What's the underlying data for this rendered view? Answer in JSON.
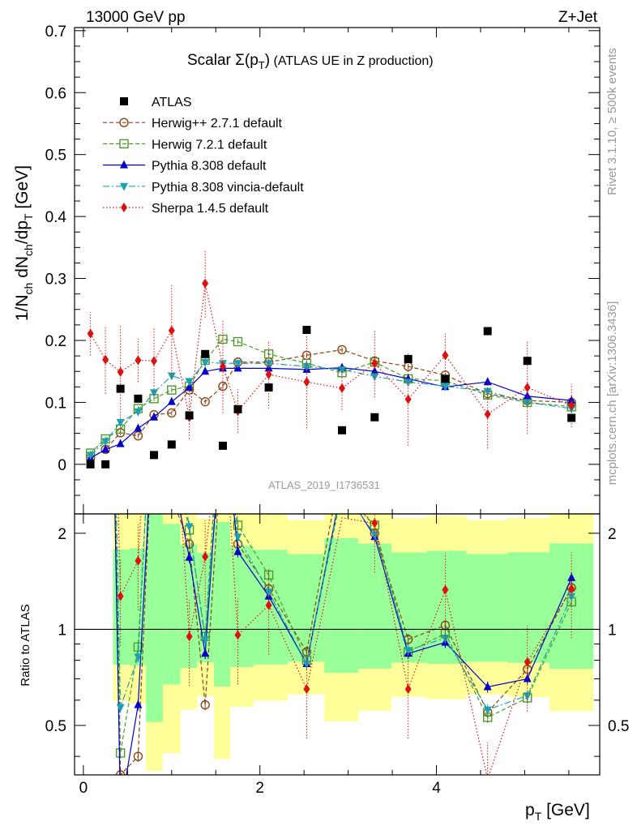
{
  "header": {
    "left": "13000 GeV pp",
    "right": "Z+Jet"
  },
  "side_text": {
    "rivet": "Rivet 3.1.10, ≥ 500k events",
    "mcplots": "mcplots.cern.ch [arXiv:1306.3436]"
  },
  "chart_data": {
    "type": "scatter",
    "title_main": "Scalar Σ(p",
    "title_sub": "T",
    "title_close": ")",
    "title_rest": " (ATLAS UE in Z production)",
    "watermark": "ATLAS_2019_I1736531",
    "ylabel": "1/N_ch dN_ch/dp_T [GeV]",
    "xlabel": "p_T [GeV]",
    "xlim": [
      -0.1,
      5.85
    ],
    "ylim": [
      -0.08,
      0.705
    ],
    "ratio_ylabel": "Ratio to ATLAS",
    "ratio_ylim": [
      0.35,
      2.3
    ],
    "x_ticks": [
      "0",
      "2",
      "4"
    ],
    "y_ticks": [
      "0",
      "0.1",
      "0.2",
      "0.3",
      "0.4",
      "0.5",
      "0.6",
      "0.7"
    ],
    "ratio_ticks": [
      "0.5",
      "1",
      "2"
    ],
    "x": [
      0.08,
      0.25,
      0.42,
      0.62,
      0.8,
      1.0,
      1.2,
      1.38,
      1.58,
      1.75,
      2.1,
      2.53,
      2.93,
      3.3,
      3.68,
      4.1,
      4.58,
      5.03,
      5.53
    ],
    "series": [
      {
        "name": "ATLAS",
        "style": "data",
        "color": "#000000",
        "values": [
          0.0,
          0.0,
          0.122,
          0.106,
          0.015,
          0.032,
          0.079,
          0.178,
          0.03,
          0.089,
          0.124,
          0.217,
          0.055,
          0.076,
          0.17,
          0.138,
          0.215,
          0.167,
          0.075
        ],
        "ratio": []
      },
      {
        "name": "Herwig++ 2.7.1 default",
        "style": "circle",
        "color": "#8b4513",
        "values": [
          0.01,
          0.024,
          0.051,
          0.046,
          0.08,
          0.083,
          0.12,
          0.101,
          0.126,
          0.165,
          0.165,
          0.176,
          0.185,
          0.167,
          0.158,
          0.144,
          0.114,
          0.103,
          0.1
        ],
        "ratio": [
          null,
          null,
          0.35,
          0.4,
          null,
          null,
          1.85,
          0.58,
          null,
          1.85,
          1.34,
          0.85,
          null,
          2.0,
          0.93,
          1.03,
          0.55,
          0.75,
          1.35
        ]
      },
      {
        "name": "Herwig 7.2.1 default",
        "style": "square",
        "color": "#4c9a2a",
        "values": [
          0.018,
          0.041,
          0.057,
          0.09,
          0.106,
          0.12,
          0.126,
          0.168,
          0.202,
          0.198,
          0.178,
          0.163,
          0.148,
          0.165,
          0.138,
          0.135,
          0.112,
          0.1,
          0.093
        ],
        "ratio": [
          null,
          null,
          0.41,
          0.88,
          null,
          null,
          2.05,
          0.95,
          null,
          2.12,
          1.48,
          0.8,
          null,
          2.12,
          0.85,
          0.97,
          0.53,
          0.61,
          1.22
        ]
      },
      {
        "name": "Pythia 8.308 default",
        "style": "triangle",
        "color": "#0000cc",
        "values": [
          0.01,
          0.024,
          0.033,
          0.058,
          0.076,
          0.101,
          0.124,
          0.15,
          0.155,
          0.155,
          0.155,
          0.153,
          0.156,
          0.15,
          0.138,
          0.125,
          0.133,
          0.11,
          0.103
        ],
        "ratio": [
          null,
          null,
          null,
          0.58,
          null,
          null,
          1.68,
          0.84,
          null,
          1.75,
          1.27,
          0.78,
          null,
          1.95,
          0.84,
          0.91,
          0.66,
          0.7,
          1.45
        ]
      },
      {
        "name": "Pythia 8.308 vincia-default",
        "style": "triangle-down",
        "color": "#1e9fb4",
        "values": [
          0.015,
          0.037,
          0.068,
          0.085,
          0.116,
          0.143,
          0.134,
          0.165,
          0.163,
          0.163,
          0.163,
          0.158,
          0.153,
          0.142,
          0.133,
          0.126,
          0.118,
          0.1,
          0.09
        ],
        "ratio": [
          null,
          null,
          0.57,
          0.82,
          null,
          null,
          2.1,
          0.93,
          null,
          1.95,
          1.31,
          0.78,
          null,
          1.98,
          0.86,
          0.94,
          0.56,
          0.62,
          1.27
        ]
      },
      {
        "name": "Sherpa 1.4.5 default",
        "style": "diamond",
        "color": "#e01010",
        "values": [
          0.211,
          0.169,
          0.149,
          0.168,
          0.167,
          0.216,
          0.076,
          0.292,
          0.158,
          0.086,
          0.145,
          0.133,
          0.123,
          0.163,
          0.105,
          0.176,
          0.081,
          0.124,
          0.095
        ],
        "ratio": [
          null,
          null,
          1.27,
          1.64,
          null,
          null,
          0.95,
          1.69,
          null,
          0.96,
          1.19,
          0.65,
          null,
          2.15,
          0.65,
          1.33,
          0.34,
          0.79,
          1.34
        ]
      }
    ]
  }
}
